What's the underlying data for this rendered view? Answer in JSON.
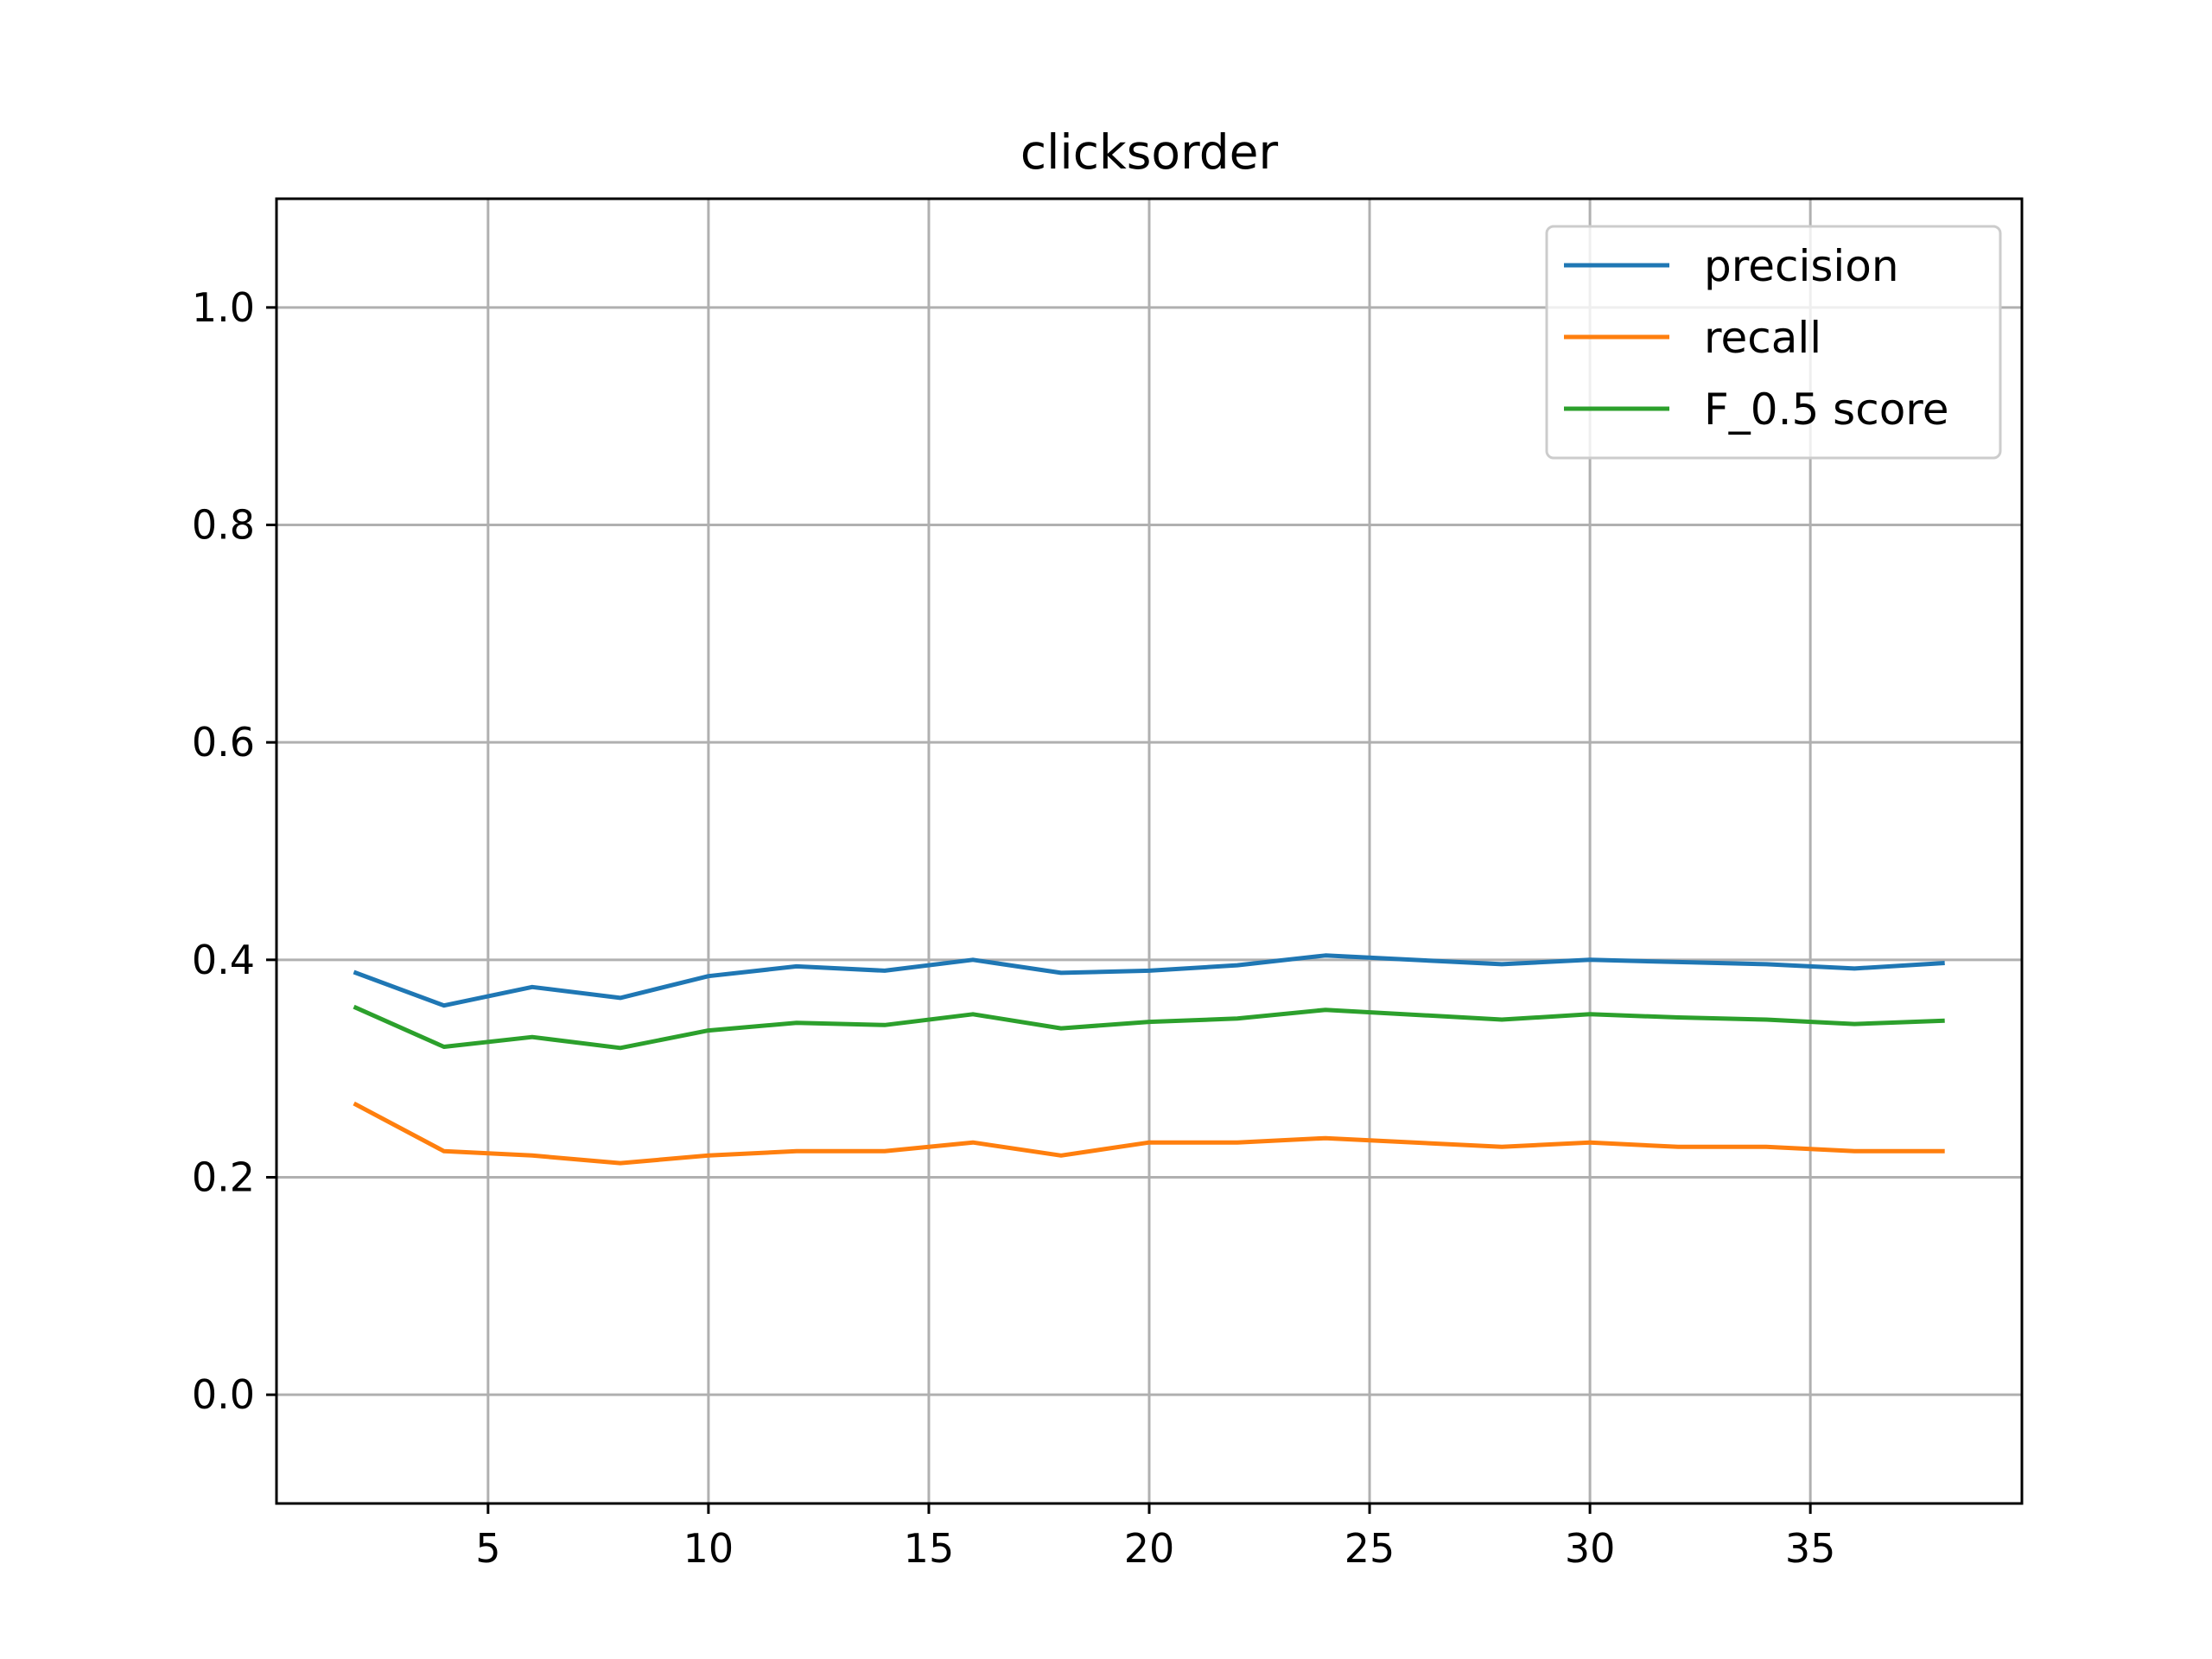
{
  "chart_data": {
    "type": "line",
    "title": "clicksorder",
    "xlabel": "",
    "ylabel": "",
    "xlim": [
      0.2,
      39.8
    ],
    "ylim": [
      -0.1,
      1.1
    ],
    "xticks": [
      5,
      10,
      15,
      20,
      25,
      30,
      35
    ],
    "xtick_labels": [
      "5",
      "10",
      "15",
      "20",
      "25",
      "30",
      "35"
    ],
    "yticks": [
      0.0,
      0.2,
      0.4,
      0.6,
      0.8,
      1.0
    ],
    "ytick_labels": [
      "0.0",
      "0.2",
      "0.4",
      "0.6",
      "0.8",
      "1.0"
    ],
    "grid": true,
    "legend_position": "top-right",
    "x": [
      2,
      4,
      6,
      8,
      10,
      12,
      14,
      16,
      18,
      20,
      22,
      24,
      28,
      30,
      32,
      34,
      36,
      38
    ],
    "series": [
      {
        "name": "precision",
        "color": "#1f77b4",
        "values": [
          0.388,
          0.358,
          0.375,
          0.365,
          0.385,
          0.394,
          0.39,
          0.4,
          0.388,
          0.39,
          0.395,
          0.404,
          0.396,
          0.4,
          0.398,
          0.396,
          0.392,
          0.397
        ]
      },
      {
        "name": "recall",
        "color": "#ff7f0e",
        "values": [
          0.267,
          0.224,
          0.22,
          0.213,
          0.22,
          0.224,
          0.224,
          0.232,
          0.22,
          0.232,
          0.232,
          0.236,
          0.228,
          0.232,
          0.228,
          0.228,
          0.224,
          0.224
        ]
      },
      {
        "name": "F_0.5 score",
        "color": "#2ca02c",
        "values": [
          0.356,
          0.32,
          0.329,
          0.319,
          0.335,
          0.342,
          0.34,
          0.35,
          0.337,
          0.343,
          0.346,
          0.354,
          0.345,
          0.35,
          0.347,
          0.345,
          0.341,
          0.344
        ]
      }
    ]
  }
}
